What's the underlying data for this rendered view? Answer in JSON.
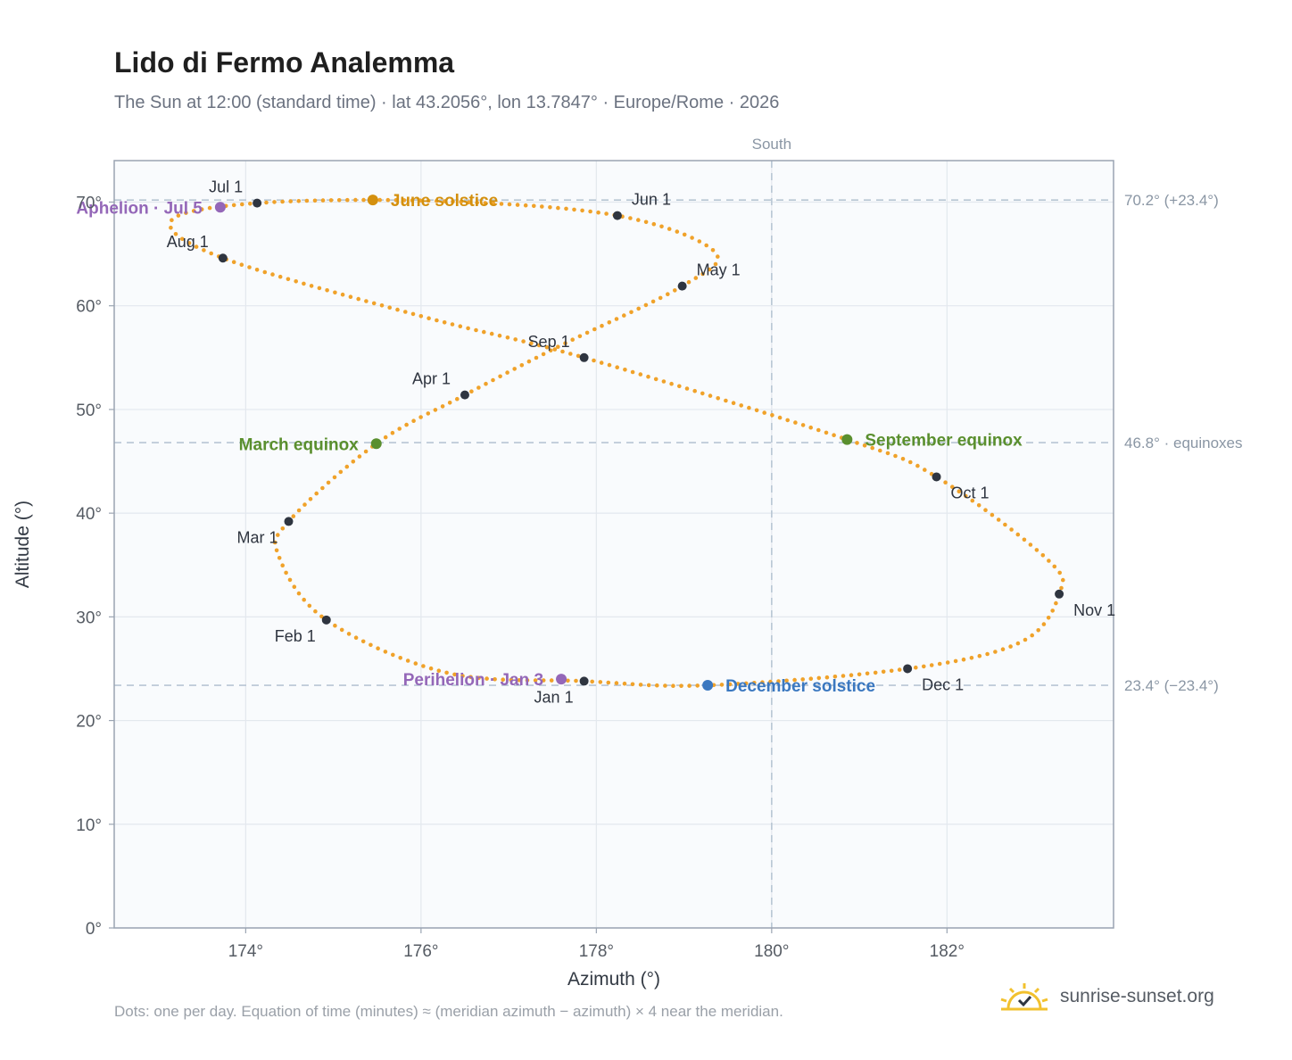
{
  "title": "Lido di Fermo Analemma",
  "subtitle": "The Sun at 12:00 (standard time) · lat 43.2056°, lon 13.7847° · Europe/Rome · 2026",
  "footnote": "Dots: one per day. Equation of time (minutes) ≈ (meridian azimuth − azimuth) × 4 near the meridian.",
  "brand": {
    "name": "sunrise-sunset.org",
    "icon": "sun-logo-icon"
  },
  "colors": {
    "path": "#f0a22a",
    "month_dot": "#2f3540",
    "june_solstice": "#d4900e",
    "december_solstice": "#3b78c0",
    "equinox": "#5a8f2e",
    "apsis": "#9467b8",
    "plot_bg": "#f9fbfd",
    "grid": "#e3e8ee",
    "ref_line": "#b8c6d4"
  },
  "chart_data": {
    "type": "scatter",
    "xlabel": "Azimuth (°)",
    "ylabel": "Altitude (°)",
    "xlim": [
      172.5,
      183.9
    ],
    "ylim": [
      0,
      74
    ],
    "x_ticks": [
      174,
      176,
      178,
      180,
      182
    ],
    "x_tick_labels": [
      "174°",
      "176°",
      "178°",
      "180°",
      "182°"
    ],
    "y_ticks": [
      0,
      10,
      20,
      30,
      40,
      50,
      60,
      70
    ],
    "y_tick_labels": [
      "0°",
      "10°",
      "20°",
      "30°",
      "40°",
      "50°",
      "60°",
      "70°"
    ],
    "grid": true,
    "meridian": {
      "azimuth": 180,
      "label": "South"
    },
    "reference_lines": [
      {
        "altitude": 70.2,
        "label": "70.2° (+23.4°)"
      },
      {
        "altitude": 46.8,
        "label": "46.8° · equinoxes"
      },
      {
        "altitude": 23.4,
        "label": "23.4° (−23.4°)"
      }
    ],
    "path_keypoints": [
      {
        "az": 177.86,
        "alt": 23.8
      },
      {
        "az": 176.3,
        "alt": 24.6
      },
      {
        "az": 174.92,
        "alt": 29.7
      },
      {
        "az": 174.38,
        "alt": 35.8
      },
      {
        "az": 174.49,
        "alt": 39.2
      },
      {
        "az": 175.49,
        "alt": 46.7
      },
      {
        "az": 176.5,
        "alt": 51.4
      },
      {
        "az": 177.6,
        "alt": 56.2
      },
      {
        "az": 178.98,
        "alt": 61.9
      },
      {
        "az": 179.35,
        "alt": 65.2
      },
      {
        "az": 178.24,
        "alt": 68.7
      },
      {
        "az": 176.2,
        "alt": 70.1
      },
      {
        "az": 174.13,
        "alt": 69.9
      },
      {
        "az": 173.15,
        "alt": 68.2
      },
      {
        "az": 173.74,
        "alt": 64.6
      },
      {
        "az": 176.0,
        "alt": 59.0
      },
      {
        "az": 177.86,
        "alt": 55.0
      },
      {
        "az": 180.86,
        "alt": 47.1
      },
      {
        "az": 181.88,
        "alt": 43.5
      },
      {
        "az": 183.15,
        "alt": 35.5
      },
      {
        "az": 183.28,
        "alt": 32.2
      },
      {
        "az": 182.85,
        "alt": 27.6
      },
      {
        "az": 181.55,
        "alt": 25.0
      },
      {
        "az": 179.27,
        "alt": 23.4
      },
      {
        "az": 177.86,
        "alt": 23.8
      }
    ],
    "month_markers": [
      {
        "label": "Jan 1",
        "az": 177.86,
        "alt": 23.8,
        "pos": "below-left"
      },
      {
        "label": "Feb 1",
        "az": 174.92,
        "alt": 29.7,
        "pos": "below-left"
      },
      {
        "label": "Mar 1",
        "az": 174.49,
        "alt": 39.2,
        "pos": "below-left"
      },
      {
        "label": "Apr 1",
        "az": 176.5,
        "alt": 51.4,
        "pos": "above-left"
      },
      {
        "label": "May 1",
        "az": 178.98,
        "alt": 61.9,
        "pos": "above-right"
      },
      {
        "label": "Jun 1",
        "az": 178.24,
        "alt": 68.7,
        "pos": "above-right"
      },
      {
        "label": "Jul 1",
        "az": 174.13,
        "alt": 69.9,
        "pos": "above-left"
      },
      {
        "label": "Aug 1",
        "az": 173.74,
        "alt": 64.6,
        "pos": "above-left"
      },
      {
        "label": "Sep 1",
        "az": 177.86,
        "alt": 55.0,
        "pos": "above-left"
      },
      {
        "label": "Oct 1",
        "az": 181.88,
        "alt": 43.5,
        "pos": "below-right"
      },
      {
        "label": "Nov 1",
        "az": 183.28,
        "alt": 32.2,
        "pos": "below-right"
      },
      {
        "label": "Dec 1",
        "az": 181.55,
        "alt": 25.0,
        "pos": "below-right"
      }
    ],
    "events": [
      {
        "label": "June solstice",
        "az": 175.45,
        "alt": 70.2,
        "color_key": "june_solstice",
        "side": "right"
      },
      {
        "label": "December solstice",
        "az": 179.27,
        "alt": 23.4,
        "color_key": "december_solstice",
        "side": "right"
      },
      {
        "label": "March equinox",
        "az": 175.49,
        "alt": 46.7,
        "color_key": "equinox",
        "side": "left"
      },
      {
        "label": "September equinox",
        "az": 180.86,
        "alt": 47.1,
        "color_key": "equinox",
        "side": "right"
      },
      {
        "label": "Aphelion · Jul 5",
        "az": 173.71,
        "alt": 69.5,
        "color_key": "apsis",
        "side": "left"
      },
      {
        "label": "Perihelion · Jan 3",
        "az": 177.6,
        "alt": 24.0,
        "color_key": "apsis",
        "side": "left"
      }
    ]
  }
}
